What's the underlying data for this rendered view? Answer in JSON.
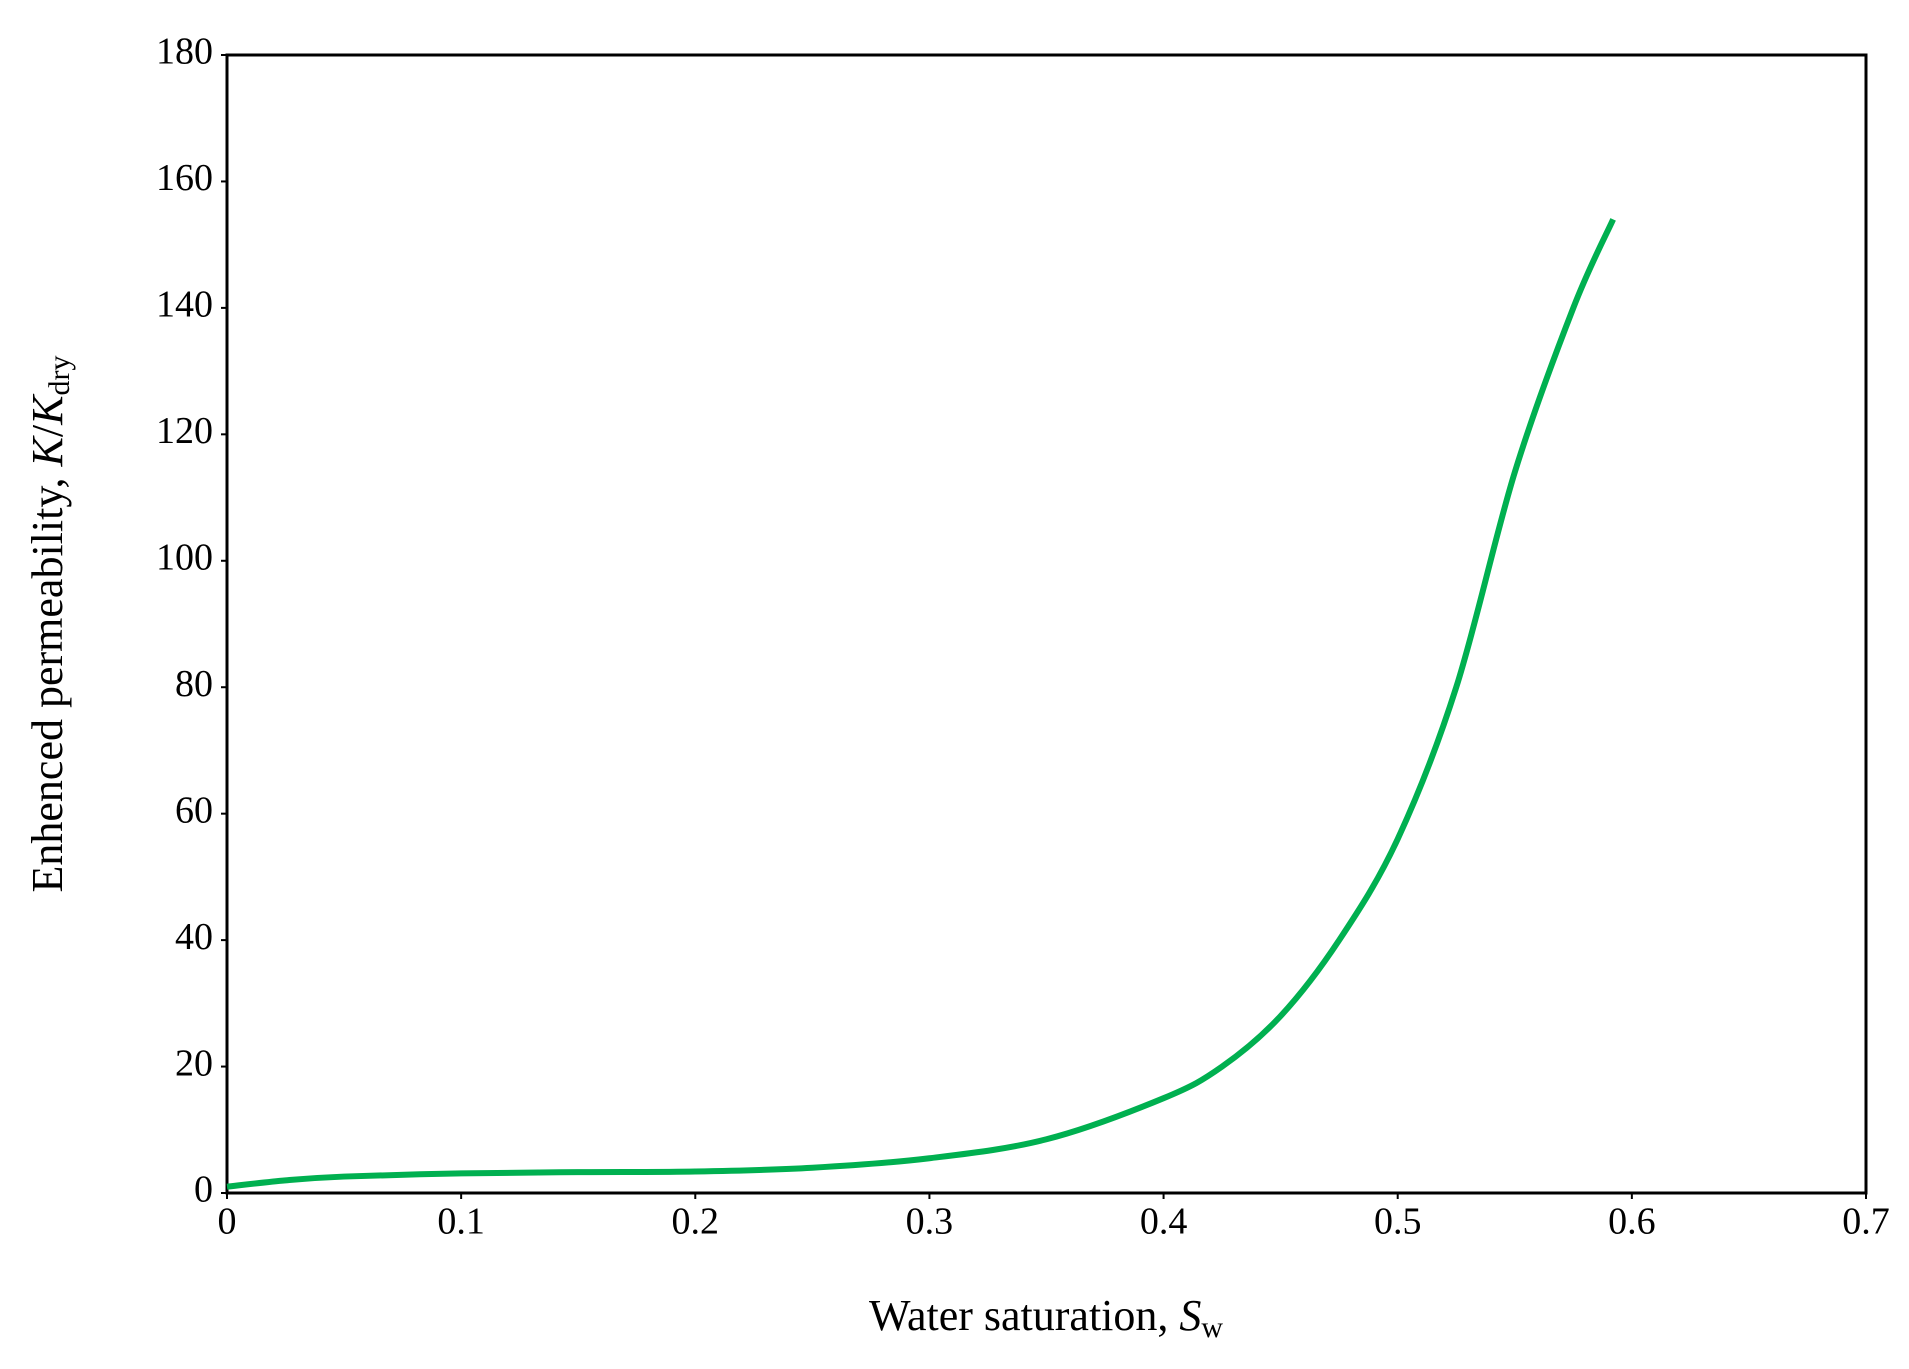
{
  "chart_data": {
    "type": "line",
    "xlabel": {
      "text": "Water saturation, ",
      "var": "S",
      "sub": "w"
    },
    "ylabel": {
      "text": "Enhenced permeability, ",
      "var": "K",
      "slash": "/",
      "var2": "K",
      "sub": "dry"
    },
    "x": [
      0,
      0.025,
      0.05,
      0.1,
      0.15,
      0.2,
      0.25,
      0.3,
      0.35,
      0.4,
      0.425,
      0.45,
      0.475,
      0.5,
      0.525,
      0.55,
      0.575,
      0.592
    ],
    "series": [
      {
        "color": "#00b050",
        "values": [
          1,
          2,
          2.6,
          3.1,
          3.3,
          3.4,
          4,
          5.5,
          8.5,
          15,
          20,
          28,
          40,
          56,
          80,
          114,
          140,
          154
        ]
      }
    ],
    "xlim": [
      0,
      0.7
    ],
    "xticks": [
      0,
      0.1,
      0.2,
      0.3,
      0.4,
      0.5,
      0.6,
      0.7
    ],
    "ylim": [
      0,
      180
    ],
    "yticks": [
      0,
      20,
      40,
      60,
      80,
      100,
      120,
      140,
      160,
      180
    ],
    "grid": false
  }
}
